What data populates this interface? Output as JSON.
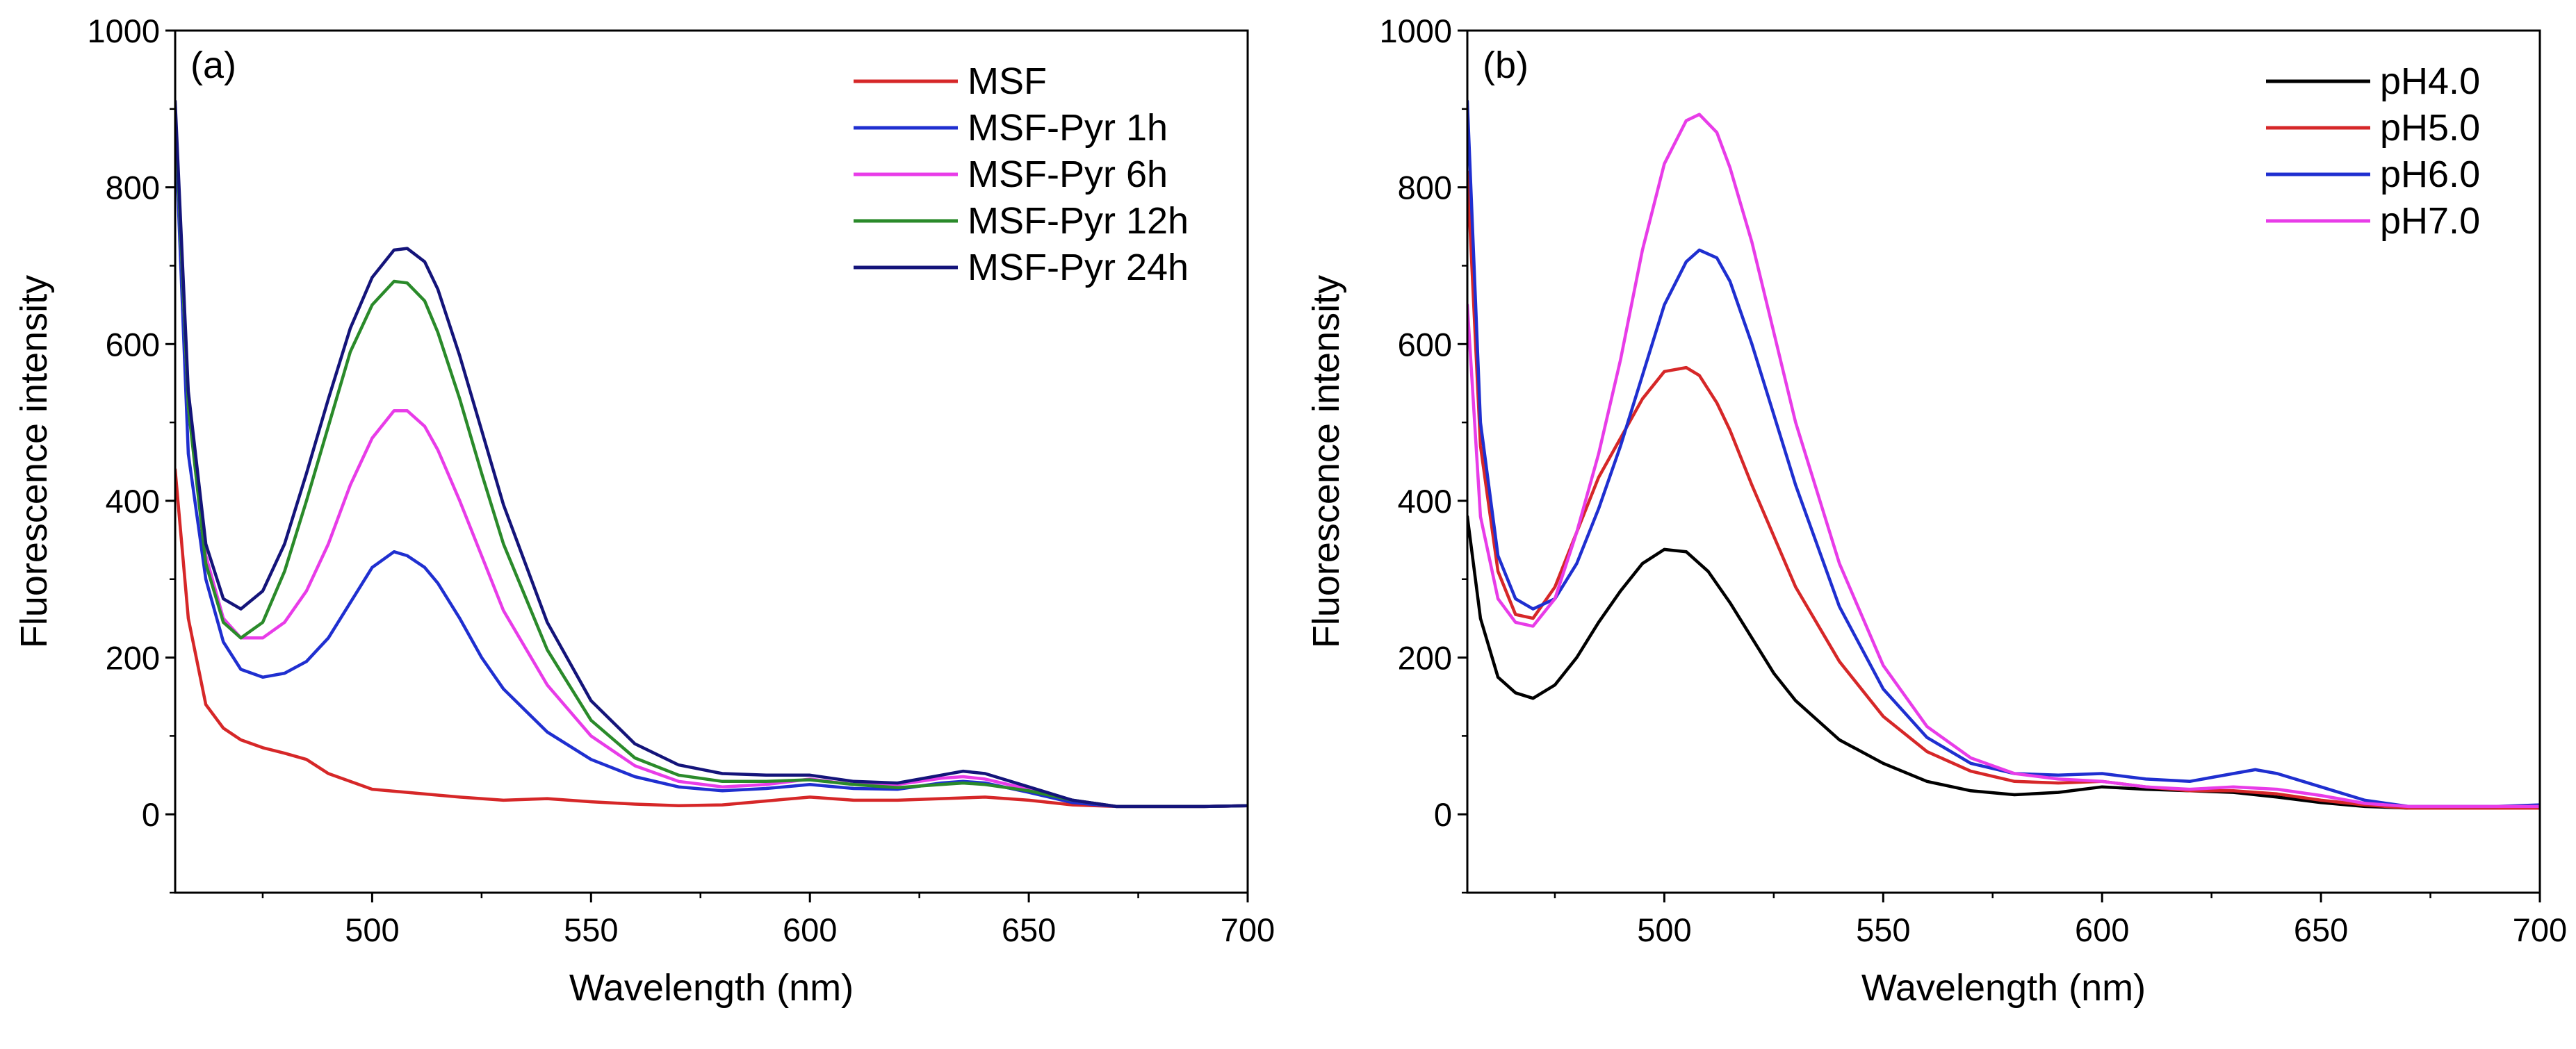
{
  "chart_data": [
    {
      "type": "line",
      "panel_label": "(a)",
      "xlabel": "Wavelength (nm)",
      "ylabel": "Fluorescence intensity",
      "xlim": [
        455,
        700
      ],
      "ylim": [
        -100,
        1000
      ],
      "xticks": [
        500,
        550,
        600,
        650,
        700
      ],
      "yticks": [
        0,
        200,
        400,
        600,
        800,
        1000
      ],
      "xtick_labels": [
        "500",
        "550",
        "600",
        "650",
        "700"
      ],
      "ytick_labels": [
        "0",
        "200",
        "400",
        "600",
        "800",
        "1000"
      ],
      "legend_position": "top-right",
      "series": [
        {
          "name": "MSF",
          "color": "#d62728",
          "x": [
            455,
            458,
            462,
            466,
            470,
            475,
            480,
            485,
            490,
            500,
            510,
            520,
            530,
            540,
            550,
            560,
            570,
            580,
            590,
            600,
            610,
            620,
            630,
            640,
            650,
            660,
            670,
            680,
            690,
            700
          ],
          "y": [
            440,
            250,
            140,
            110,
            95,
            85,
            78,
            70,
            52,
            32,
            27,
            22,
            18,
            20,
            16,
            13,
            11,
            12,
            17,
            22,
            18,
            18,
            20,
            22,
            18,
            12,
            10,
            10,
            10,
            11
          ]
        },
        {
          "name": "MSF-Pyr 1h",
          "color": "#1f2fd0",
          "x": [
            455,
            458,
            462,
            466,
            470,
            475,
            480,
            485,
            490,
            495,
            500,
            505,
            508,
            512,
            515,
            520,
            525,
            530,
            540,
            550,
            560,
            570,
            580,
            590,
            600,
            610,
            620,
            630,
            635,
            640,
            650,
            660,
            670,
            680,
            690,
            700
          ],
          "y": [
            880,
            460,
            300,
            220,
            185,
            175,
            180,
            195,
            225,
            270,
            315,
            335,
            330,
            315,
            295,
            250,
            200,
            160,
            105,
            70,
            48,
            35,
            30,
            33,
            38,
            33,
            32,
            40,
            42,
            40,
            28,
            15,
            10,
            10,
            10,
            11
          ]
        },
        {
          "name": "MSF-Pyr 6h",
          "color": "#e83ce8",
          "x": [
            455,
            458,
            462,
            466,
            470,
            475,
            480,
            485,
            490,
            495,
            500,
            505,
            508,
            512,
            515,
            520,
            525,
            530,
            540,
            550,
            560,
            570,
            580,
            590,
            600,
            610,
            620,
            630,
            635,
            640,
            650,
            660,
            670,
            680,
            690,
            700
          ],
          "y": [
            900,
            520,
            330,
            250,
            225,
            225,
            245,
            285,
            345,
            420,
            480,
            515,
            515,
            495,
            465,
            400,
            330,
            260,
            165,
            100,
            62,
            42,
            35,
            38,
            45,
            38,
            38,
            46,
            48,
            45,
            32,
            18,
            10,
            10,
            10,
            11
          ]
        },
        {
          "name": "MSF-Pyr 12h",
          "color": "#2a8a2a",
          "x": [
            455,
            458,
            462,
            466,
            470,
            475,
            480,
            485,
            490,
            495,
            500,
            505,
            508,
            512,
            515,
            520,
            525,
            530,
            540,
            550,
            560,
            570,
            580,
            590,
            600,
            610,
            620,
            630,
            635,
            640,
            650,
            660,
            670,
            680,
            690,
            700
          ],
          "y": [
            900,
            520,
            320,
            245,
            225,
            245,
            310,
            400,
            495,
            590,
            650,
            680,
            678,
            655,
            615,
            530,
            435,
            345,
            210,
            120,
            72,
            50,
            42,
            42,
            44,
            38,
            34,
            38,
            40,
            38,
            30,
            18,
            10,
            10,
            10,
            11
          ]
        },
        {
          "name": "MSF-Pyr 24h",
          "color": "#14147a",
          "x": [
            455,
            458,
            462,
            466,
            470,
            475,
            480,
            485,
            490,
            495,
            500,
            505,
            508,
            512,
            515,
            520,
            525,
            530,
            540,
            550,
            560,
            570,
            580,
            590,
            600,
            610,
            620,
            630,
            635,
            640,
            650,
            660,
            670,
            680,
            690,
            700
          ],
          "y": [
            910,
            540,
            345,
            275,
            262,
            285,
            345,
            435,
            530,
            620,
            685,
            720,
            722,
            705,
            670,
            585,
            490,
            395,
            245,
            145,
            90,
            63,
            52,
            50,
            50,
            42,
            40,
            50,
            55,
            52,
            35,
            18,
            10,
            10,
            10,
            11
          ]
        }
      ]
    },
    {
      "type": "line",
      "panel_label": "(b)",
      "xlabel": "Wavelength (nm)",
      "ylabel": "Fluorescence intensity",
      "xlim": [
        455,
        700
      ],
      "ylim": [
        -100,
        1000
      ],
      "xticks": [
        500,
        550,
        600,
        650,
        700
      ],
      "yticks": [
        0,
        200,
        400,
        600,
        800,
        1000
      ],
      "xtick_labels": [
        "500",
        "550",
        "600",
        "650",
        "700"
      ],
      "ytick_labels": [
        "0",
        "200",
        "400",
        "600",
        "800",
        "1000"
      ],
      "legend_position": "top-right",
      "series": [
        {
          "name": "pH4.0",
          "color": "#000000",
          "x": [
            455,
            458,
            462,
            466,
            470,
            475,
            480,
            485,
            490,
            495,
            500,
            505,
            510,
            515,
            520,
            525,
            530,
            540,
            550,
            560,
            570,
            580,
            590,
            600,
            610,
            620,
            630,
            640,
            650,
            660,
            670,
            680,
            690,
            700
          ],
          "y": [
            380,
            250,
            175,
            155,
            148,
            165,
            200,
            245,
            285,
            320,
            338,
            335,
            310,
            270,
            225,
            180,
            145,
            95,
            65,
            42,
            30,
            25,
            28,
            35,
            32,
            30,
            28,
            22,
            15,
            10,
            8,
            8,
            8,
            8
          ]
        },
        {
          "name": "pH5.0",
          "color": "#d62728",
          "x": [
            455,
            458,
            462,
            466,
            470,
            475,
            480,
            485,
            490,
            495,
            500,
            505,
            508,
            512,
            515,
            520,
            525,
            530,
            540,
            550,
            560,
            570,
            580,
            590,
            600,
            610,
            620,
            630,
            640,
            650,
            660,
            670,
            680,
            690,
            700
          ],
          "y": [
            820,
            470,
            310,
            255,
            250,
            290,
            360,
            430,
            480,
            530,
            565,
            570,
            560,
            525,
            490,
            420,
            355,
            290,
            195,
            125,
            80,
            55,
            42,
            40,
            42,
            35,
            30,
            30,
            26,
            18,
            12,
            8,
            8,
            8,
            8
          ]
        },
        {
          "name": "pH6.0",
          "color": "#1f2fd0",
          "x": [
            455,
            458,
            462,
            466,
            470,
            475,
            480,
            485,
            490,
            495,
            500,
            505,
            508,
            512,
            515,
            520,
            525,
            530,
            540,
            550,
            560,
            570,
            580,
            590,
            600,
            610,
            620,
            630,
            635,
            640,
            650,
            660,
            670,
            680,
            690,
            700
          ],
          "y": [
            910,
            500,
            330,
            275,
            262,
            275,
            320,
            390,
            470,
            560,
            650,
            705,
            720,
            710,
            680,
            600,
            510,
            420,
            265,
            160,
            98,
            65,
            52,
            50,
            52,
            45,
            42,
            52,
            57,
            52,
            35,
            18,
            10,
            10,
            10,
            12
          ]
        },
        {
          "name": "pH7.0",
          "color": "#e83ce8",
          "x": [
            455,
            458,
            462,
            466,
            470,
            475,
            480,
            485,
            490,
            495,
            500,
            505,
            508,
            512,
            515,
            520,
            525,
            530,
            540,
            550,
            560,
            570,
            580,
            590,
            600,
            610,
            620,
            630,
            640,
            650,
            660,
            670,
            680,
            690,
            700
          ],
          "y": [
            650,
            380,
            275,
            245,
            240,
            275,
            360,
            460,
            580,
            720,
            830,
            885,
            893,
            870,
            825,
            730,
            615,
            500,
            320,
            190,
            112,
            72,
            52,
            45,
            42,
            35,
            32,
            35,
            32,
            24,
            14,
            10,
            10,
            10,
            10
          ]
        }
      ]
    }
  ]
}
